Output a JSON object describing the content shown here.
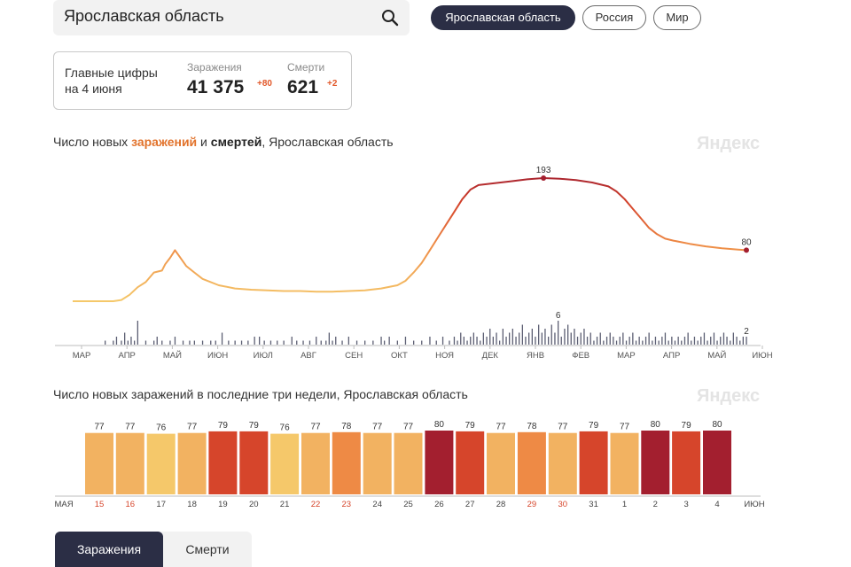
{
  "search": {
    "value": "Ярославская область"
  },
  "region_tabs": [
    {
      "label": "Ярославская область",
      "active": true
    },
    {
      "label": "Россия",
      "active": false
    },
    {
      "label": "Мир",
      "active": false
    }
  ],
  "summary": {
    "label_line1": "Главные цифры",
    "label_line2": "на 4 июня",
    "infections": {
      "label": "Заражения",
      "value": "41 375",
      "delta": "+80"
    },
    "deaths": {
      "label": "Смерти",
      "value": "621",
      "delta": "+2"
    }
  },
  "brand": "Яндекс",
  "colors": {
    "low": "#f5c86a",
    "mid": "#ee8a45",
    "high": "#d6452b",
    "top": "#a31f2f",
    "dark_button": "#2b2e45",
    "death_bar": "#5c5f73"
  },
  "chart_data": [
    {
      "type": "line",
      "title_parts": {
        "prefix": "Число новых ",
        "infections_word": "заражений",
        "middle": " и ",
        "deaths_word": "смертей",
        "suffix": ", Ярославская область"
      },
      "x_tick_labels": [
        "МАР",
        "АПР",
        "МАЙ",
        "ИЮН",
        "ИЮЛ",
        "АВГ",
        "СЕН",
        "ОКТ",
        "НОЯ",
        "ДЕК",
        "ЯНВ",
        "ФЕВ",
        "МАР",
        "АПР",
        "МАЙ",
        "ИЮН"
      ],
      "series": [
        {
          "points": [
            [
              0,
              0
            ],
            [
              10,
              0
            ],
            [
              25,
              0
            ],
            [
              30,
              2
            ],
            [
              35,
              10
            ],
            [
              40,
              22
            ],
            [
              45,
              30
            ],
            [
              50,
              45
            ],
            [
              55,
              48
            ],
            [
              57,
              58
            ],
            [
              60,
              68
            ],
            [
              63,
              80
            ],
            [
              65,
              73
            ],
            [
              70,
              55
            ],
            [
              75,
              45
            ],
            [
              80,
              35
            ],
            [
              90,
              25
            ],
            [
              100,
              20
            ],
            [
              110,
              18
            ],
            [
              120,
              17
            ],
            [
              130,
              16
            ],
            [
              140,
              16
            ],
            [
              150,
              15
            ],
            [
              160,
              15
            ],
            [
              170,
              16
            ],
            [
              180,
              17
            ],
            [
              190,
              20
            ],
            [
              200,
              25
            ],
            [
              205,
              32
            ],
            [
              210,
              45
            ],
            [
              215,
              60
            ],
            [
              220,
              80
            ],
            [
              225,
              100
            ],
            [
              230,
              120
            ],
            [
              235,
              140
            ],
            [
              240,
              160
            ],
            [
              245,
              175
            ],
            [
              250,
              182
            ],
            [
              260,
              185
            ],
            [
              270,
              188
            ],
            [
              280,
              191
            ],
            [
              290,
              193
            ],
            [
              300,
              192
            ],
            [
              310,
              190
            ],
            [
              320,
              186
            ],
            [
              330,
              180
            ],
            [
              335,
              172
            ],
            [
              340,
              160
            ],
            [
              345,
              145
            ],
            [
              350,
              130
            ],
            [
              355,
              115
            ],
            [
              360,
              105
            ],
            [
              365,
              98
            ],
            [
              370,
              95
            ],
            [
              380,
              90
            ],
            [
              390,
              86
            ],
            [
              400,
              83
            ],
            [
              410,
              81
            ],
            [
              415,
              80
            ]
          ],
          "annotations": [
            {
              "label": "193",
              "x": 290,
              "y": 193
            },
            {
              "label": "80",
              "x": 415,
              "y": 80
            }
          ]
        },
        {
          "bars": [
            [
              20,
              1
            ],
            [
              25,
              1
            ],
            [
              27,
              2
            ],
            [
              30,
              1
            ],
            [
              32,
              3
            ],
            [
              34,
              1
            ],
            [
              36,
              2
            ],
            [
              38,
              1
            ],
            [
              40,
              6
            ],
            [
              45,
              1
            ],
            [
              50,
              1
            ],
            [
              52,
              2
            ],
            [
              55,
              1
            ],
            [
              60,
              1
            ],
            [
              63,
              2
            ],
            [
              68,
              1
            ],
            [
              72,
              1
            ],
            [
              75,
              1
            ],
            [
              80,
              1
            ],
            [
              85,
              1
            ],
            [
              88,
              1
            ],
            [
              92,
              3
            ],
            [
              96,
              1
            ],
            [
              100,
              1
            ],
            [
              104,
              1
            ],
            [
              108,
              1
            ],
            [
              112,
              2
            ],
            [
              115,
              2
            ],
            [
              118,
              1
            ],
            [
              122,
              1
            ],
            [
              126,
              1
            ],
            [
              130,
              1
            ],
            [
              135,
              2
            ],
            [
              138,
              1
            ],
            [
              142,
              1
            ],
            [
              146,
              1
            ],
            [
              150,
              2
            ],
            [
              153,
              1
            ],
            [
              156,
              1
            ],
            [
              158,
              3
            ],
            [
              160,
              1
            ],
            [
              162,
              2
            ],
            [
              166,
              1
            ],
            [
              170,
              2
            ],
            [
              175,
              1
            ],
            [
              180,
              1
            ],
            [
              185,
              1
            ],
            [
              190,
              2
            ],
            [
              192,
              1
            ],
            [
              195,
              2
            ],
            [
              200,
              1
            ],
            [
              205,
              2
            ],
            [
              210,
              1
            ],
            [
              215,
              1
            ],
            [
              220,
              2
            ],
            [
              224,
              1
            ],
            [
              228,
              2
            ],
            [
              232,
              1
            ],
            [
              235,
              2
            ],
            [
              237,
              1
            ],
            [
              239,
              3
            ],
            [
              241,
              2
            ],
            [
              243,
              1
            ],
            [
              245,
              2
            ],
            [
              247,
              3
            ],
            [
              249,
              2
            ],
            [
              251,
              1
            ],
            [
              253,
              3
            ],
            [
              255,
              2
            ],
            [
              257,
              4
            ],
            [
              259,
              2
            ],
            [
              261,
              3
            ],
            [
              263,
              1
            ],
            [
              265,
              4
            ],
            [
              267,
              2
            ],
            [
              269,
              3
            ],
            [
              271,
              4
            ],
            [
              273,
              2
            ],
            [
              275,
              3
            ],
            [
              277,
              5
            ],
            [
              279,
              2
            ],
            [
              281,
              3
            ],
            [
              283,
              4
            ],
            [
              285,
              2
            ],
            [
              287,
              5
            ],
            [
              289,
              3
            ],
            [
              291,
              4
            ],
            [
              293,
              2
            ],
            [
              295,
              5
            ],
            [
              297,
              3
            ],
            [
              299,
              6
            ],
            [
              301,
              2
            ],
            [
              303,
              4
            ],
            [
              305,
              5
            ],
            [
              307,
              3
            ],
            [
              309,
              4
            ],
            [
              311,
              2
            ],
            [
              313,
              3
            ],
            [
              315,
              4
            ],
            [
              317,
              2
            ],
            [
              319,
              3
            ],
            [
              321,
              1
            ],
            [
              323,
              2
            ],
            [
              325,
              3
            ],
            [
              327,
              1
            ],
            [
              329,
              2
            ],
            [
              331,
              3
            ],
            [
              333,
              2
            ],
            [
              335,
              1
            ],
            [
              337,
              2
            ],
            [
              339,
              3
            ],
            [
              341,
              1
            ],
            [
              343,
              2
            ],
            [
              345,
              3
            ],
            [
              347,
              1
            ],
            [
              349,
              2
            ],
            [
              351,
              1
            ],
            [
              353,
              2
            ],
            [
              355,
              3
            ],
            [
              357,
              1
            ],
            [
              359,
              2
            ],
            [
              361,
              1
            ],
            [
              363,
              2
            ],
            [
              365,
              3
            ],
            [
              367,
              1
            ],
            [
              369,
              2
            ],
            [
              371,
              1
            ],
            [
              373,
              2
            ],
            [
              375,
              1
            ],
            [
              377,
              2
            ],
            [
              379,
              3
            ],
            [
              381,
              1
            ],
            [
              383,
              2
            ],
            [
              385,
              1
            ],
            [
              387,
              2
            ],
            [
              389,
              3
            ],
            [
              391,
              1
            ],
            [
              393,
              2
            ],
            [
              395,
              3
            ],
            [
              397,
              1
            ],
            [
              399,
              2
            ],
            [
              401,
              3
            ],
            [
              403,
              2
            ],
            [
              405,
              1
            ],
            [
              407,
              3
            ],
            [
              409,
              2
            ],
            [
              411,
              1
            ],
            [
              413,
              2
            ],
            [
              415,
              2
            ]
          ],
          "annotations": [
            {
              "label": "6",
              "x": 299,
              "y": 6
            },
            {
              "label": "2",
              "x": 415,
              "y": 2
            }
          ]
        }
      ]
    },
    {
      "type": "bar",
      "title": "Число новых заражений в последние три недели, Ярославская область",
      "start_month_label": "МАЯ",
      "end_month_label": "ИЮН",
      "categories": [
        "15",
        "16",
        "17",
        "18",
        "19",
        "20",
        "21",
        "22",
        "23",
        "24",
        "25",
        "26",
        "27",
        "28",
        "29",
        "30",
        "31",
        "1",
        "2",
        "3",
        "4"
      ],
      "weekend_categories": [
        "15",
        "16",
        "22",
        "23",
        "29",
        "30"
      ],
      "values": [
        77,
        77,
        76,
        77,
        79,
        79,
        76,
        77,
        78,
        77,
        77,
        80,
        79,
        77,
        78,
        77,
        79,
        77,
        80,
        79,
        80
      ],
      "value_labels": [
        "77",
        "77",
        "76",
        "77",
        "79",
        "79",
        "76",
        "77",
        "78",
        "77",
        "77",
        "80",
        "79",
        "77",
        "78",
        "77",
        "79",
        "77",
        "80",
        "79",
        "80"
      ]
    }
  ],
  "metric_toggle": {
    "infections_label": "Заражения",
    "deaths_label": "Смерти",
    "active": "infections"
  }
}
